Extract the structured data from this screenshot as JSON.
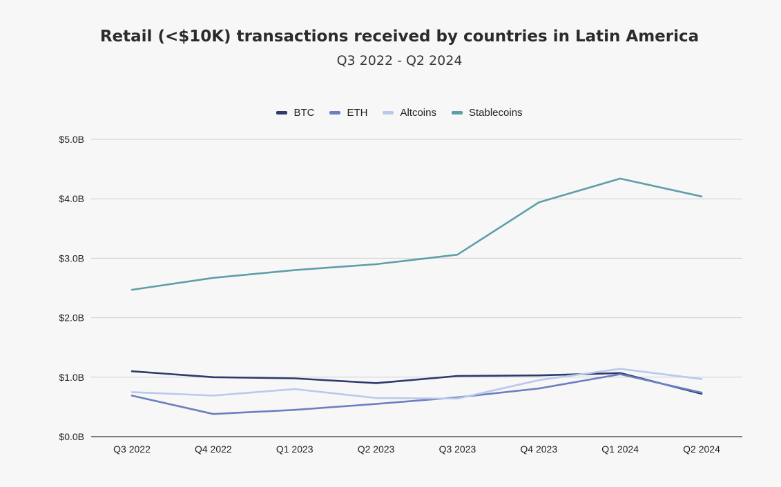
{
  "chart_data": {
    "type": "line",
    "title": "Retail (<$10K) transactions received by countries in Latin America",
    "subtitle": "Q3 2022 - Q2 2024",
    "categories": [
      "Q3 2022",
      "Q4 2022",
      "Q1 2023",
      "Q2 2023",
      "Q3 2023",
      "Q4 2023",
      "Q1 2024",
      "Q2 2024"
    ],
    "ylim": [
      0,
      5
    ],
    "yticks": [
      "$0.0B",
      "$1.0B",
      "$2.0B",
      "$3.0B",
      "$4.0B",
      "$5.0B"
    ],
    "grid": true,
    "legend_position": "top-center",
    "series": [
      {
        "name": "BTC",
        "color": "#2e3a6e",
        "values": [
          1.1,
          1.0,
          0.98,
          0.9,
          1.02,
          1.03,
          1.07,
          0.72
        ]
      },
      {
        "name": "ETH",
        "color": "#6b7fc1",
        "values": [
          0.69,
          0.38,
          0.45,
          0.55,
          0.66,
          0.81,
          1.05,
          0.74
        ]
      },
      {
        "name": "Altcoins",
        "color": "#b9c9ec",
        "values": [
          0.75,
          0.69,
          0.8,
          0.65,
          0.64,
          0.95,
          1.14,
          0.97
        ]
      },
      {
        "name": "Stablecoins",
        "color": "#5e9ea9",
        "values": [
          2.47,
          2.67,
          2.8,
          2.9,
          3.06,
          3.94,
          4.34,
          4.04
        ]
      }
    ]
  }
}
